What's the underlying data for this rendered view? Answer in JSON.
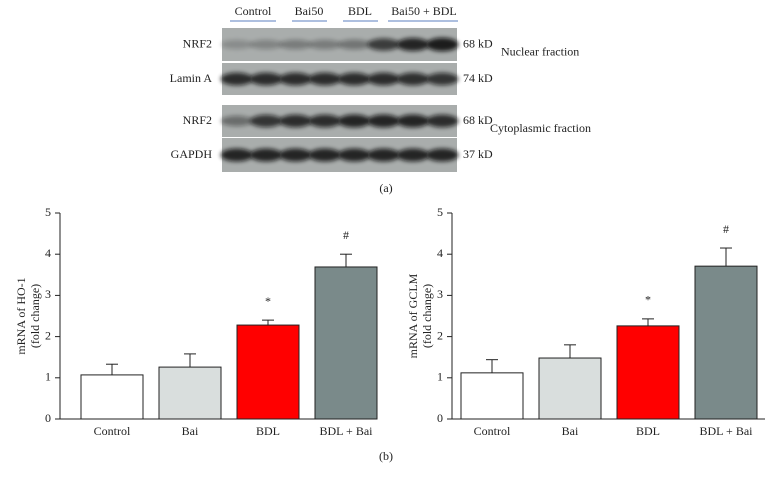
{
  "blot": {
    "lanes": [
      "Control",
      "Bai50",
      "BDL",
      "Bai50 + BDL"
    ],
    "rows": [
      {
        "label": "NRF2",
        "size": "68 kD",
        "note": "Nuclear fraction"
      },
      {
        "label": "Lamin A",
        "size": "74 kD"
      },
      {
        "label": "NRF2",
        "size": "68 kD",
        "note": "Cytoplasmic fraction"
      },
      {
        "label": "GAPDH",
        "size": "37 kD"
      }
    ],
    "panel_label": "(a)"
  },
  "panel_b_label": "(b)",
  "chart_data": [
    {
      "type": "bar",
      "ylabel": [
        "mRNA of HO-1",
        "(fold change)"
      ],
      "categories": [
        "Control",
        "Bai",
        "BDL",
        "BDL + Bai"
      ],
      "values": [
        1.07,
        1.26,
        2.28,
        3.69
      ],
      "errors": [
        0.26,
        0.32,
        0.12,
        0.31
      ],
      "colors": [
        "#ffffff",
        "#d9dedd",
        "#ff0000",
        "#7a8a8a"
      ],
      "annotations": [
        null,
        null,
        "*",
        "#"
      ],
      "ylim": [
        0,
        5
      ],
      "yticks": [
        0,
        1,
        2,
        3,
        4,
        5
      ]
    },
    {
      "type": "bar",
      "ylabel": [
        "mRNA of GCLM",
        "(fold change)"
      ],
      "categories": [
        "Control",
        "Bai",
        "BDL",
        "BDL + Bai"
      ],
      "values": [
        1.12,
        1.48,
        2.26,
        3.71
      ],
      "errors": [
        0.32,
        0.32,
        0.17,
        0.44
      ],
      "colors": [
        "#ffffff",
        "#d9dedd",
        "#ff0000",
        "#7a8a8a"
      ],
      "annotations": [
        null,
        null,
        "*",
        "#"
      ],
      "ylim": [
        0,
        5
      ],
      "yticks": [
        0,
        1,
        2,
        3,
        4,
        5
      ]
    }
  ]
}
